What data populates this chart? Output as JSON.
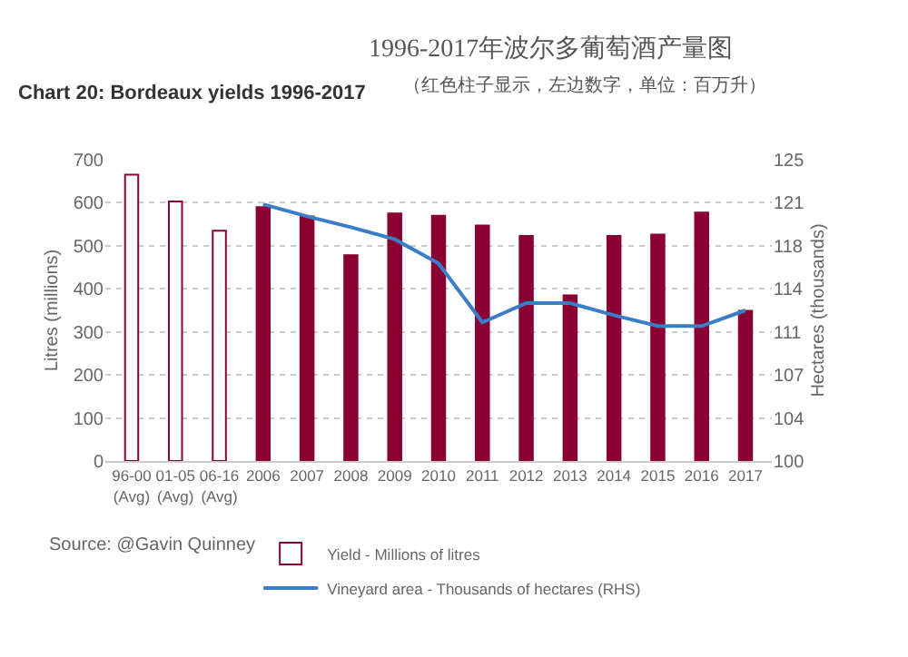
{
  "chart_data": {
    "type": "bar",
    "title": "Chart 20: Bordeaux yields 1996-2017",
    "subtitle": "1996-2017年波尔多葡萄酒产量图",
    "annotations": [
      "（红色柱子显示，左边数字，单位：百万升）",
      "Source: @Gavin Quinney"
    ],
    "ylabel": "Litres (millions)",
    "y2label": "Hectares (thousands)",
    "categories": [
      "96-00\n(Avg)",
      "01-05\n(Avg)",
      "06-16\n(Avg)",
      "2006",
      "2007",
      "2008",
      "2009",
      "2010",
      "2011",
      "2012",
      "2013",
      "2014",
      "2015",
      "2016",
      "2017"
    ],
    "series": [
      {
        "name": "Yield - Millions of litres",
        "color": "#8b0033",
        "colors": [
          "#ffffff",
          "#ffffff",
          "#ffffff",
          "#8b0033",
          "#8b0033",
          "#8b0033",
          "#8b0033",
          "#8b0033",
          "#8b0033",
          "#8b0033",
          "#8b0033",
          "#8b0033",
          "#8b0033",
          "#8b0033",
          "#8b0033"
        ],
        "values": [
          665,
          603,
          535,
          590,
          568,
          478,
          575,
          570,
          547,
          523,
          385,
          523,
          526,
          577,
          349
        ]
      },
      {
        "name": "Vineyard area - Thousands of hectares (RHS)",
        "type": "line",
        "axis": "y2",
        "color": "#3a7dc9",
        "marker": "none",
        "line_style": "solid",
        "values": [
          null,
          null,
          null,
          121.3,
          120.3,
          119.4,
          118.4,
          116.4,
          111.5,
          113.1,
          113.1,
          112.1,
          111.2,
          111.2,
          112.5
        ]
      }
    ],
    "ylim": [
      0,
      700
    ],
    "yticks": [
      0,
      100,
      200,
      300,
      400,
      500,
      600,
      700
    ],
    "y2lim": [
      100,
      125
    ],
    "y2ticks": [
      100,
      {
        "value": 103.57,
        "label": "104"
      },
      {
        "value": 107.14,
        "label": "107"
      },
      {
        "value": 110.71,
        "label": "111"
      },
      {
        "value": 114.29,
        "label": "114"
      },
      {
        "value": 117.86,
        "label": "118"
      },
      {
        "value": 121.43,
        "label": "121"
      },
      125
    ],
    "grid": "y",
    "legend": "bottom"
  }
}
